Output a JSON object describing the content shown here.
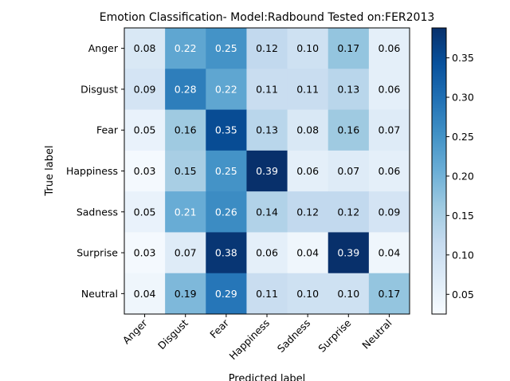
{
  "chart_data": {
    "type": "heatmap",
    "title": "Emotion Classification- Model:Radbound Tested on:FER2013",
    "xlabel": "Predicted label",
    "ylabel": "True label",
    "x_categories": [
      "Anger",
      "Disgust",
      "Fear",
      "Happiness",
      "Sadness",
      "Surprise",
      "Neutral"
    ],
    "y_categories": [
      "Anger",
      "Disgust",
      "Fear",
      "Happiness",
      "Sadness",
      "Surprise",
      "Neutral"
    ],
    "values": [
      [
        0.08,
        0.22,
        0.25,
        0.12,
        0.1,
        0.17,
        0.06
      ],
      [
        0.09,
        0.28,
        0.22,
        0.11,
        0.11,
        0.13,
        0.06
      ],
      [
        0.05,
        0.16,
        0.35,
        0.13,
        0.08,
        0.16,
        0.07
      ],
      [
        0.03,
        0.15,
        0.25,
        0.39,
        0.06,
        0.07,
        0.06
      ],
      [
        0.05,
        0.21,
        0.26,
        0.14,
        0.12,
        0.12,
        0.09
      ],
      [
        0.03,
        0.07,
        0.38,
        0.06,
        0.04,
        0.39,
        0.04
      ],
      [
        0.04,
        0.19,
        0.29,
        0.11,
        0.1,
        0.1,
        0.17
      ]
    ],
    "colormap": "Blues",
    "colorbar": {
      "ticks": [
        "0.05",
        "0.10",
        "0.15",
        "0.20",
        "0.25",
        "0.30",
        "0.35"
      ],
      "range": [
        0.025,
        0.388
      ]
    },
    "grid": false
  }
}
